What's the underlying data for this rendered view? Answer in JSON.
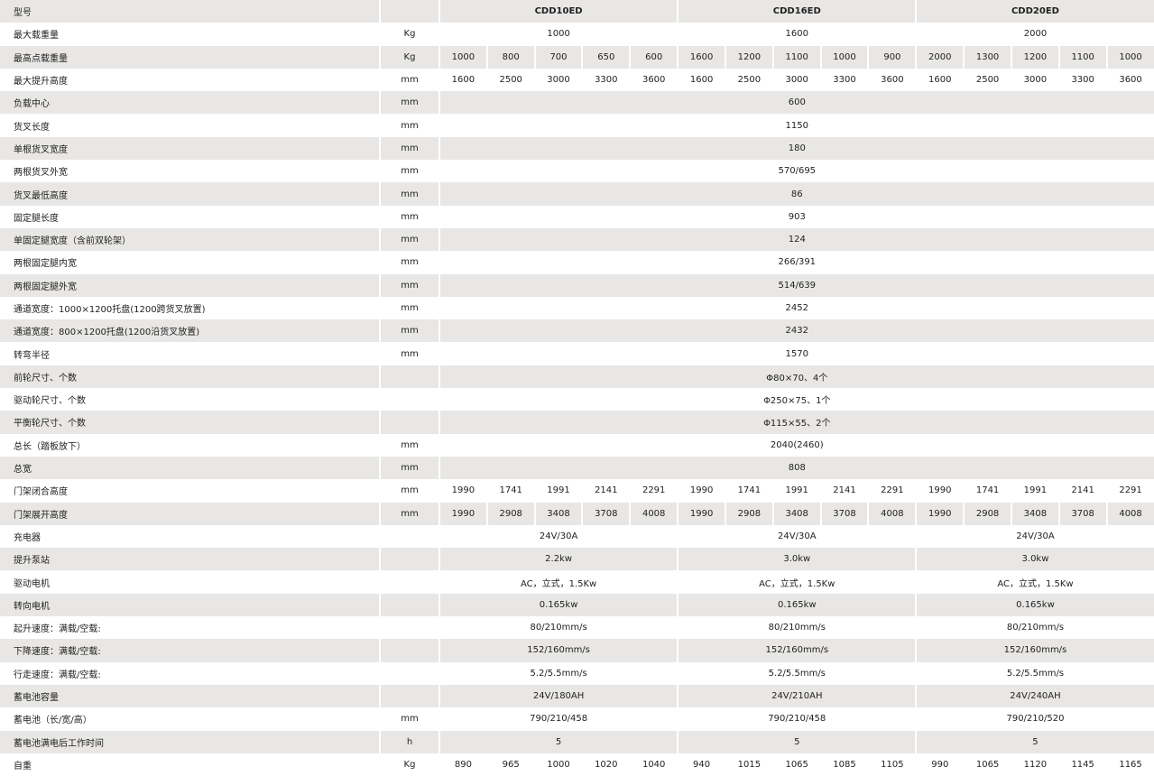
{
  "rows": [
    {
      "label": "型号",
      "unit": "",
      "span": "group",
      "values": [
        "CDD10ED",
        "CDD16ED",
        "CDD20ED"
      ]
    },
    {
      "label": "最大载重量",
      "unit": "Kg",
      "span": "group",
      "values": [
        "1000",
        "1600",
        "2000"
      ]
    },
    {
      "label": "最高点载重量",
      "unit": "Kg",
      "span": "each",
      "values": [
        "1000",
        "800",
        "700",
        "650",
        "600",
        "1600",
        "1200",
        "1100",
        "1000",
        "900",
        "2000",
        "1300",
        "1200",
        "1100",
        "1000"
      ]
    },
    {
      "label": "最大提升高度",
      "unit": "mm",
      "span": "each",
      "values": [
        "1600",
        "2500",
        "3000",
        "3300",
        "3600",
        "1600",
        "2500",
        "3000",
        "3300",
        "3600",
        "1600",
        "2500",
        "3000",
        "3300",
        "3600"
      ]
    },
    {
      "label": "负载中心",
      "unit": "mm",
      "span": "all",
      "values": [
        "600"
      ]
    },
    {
      "label": "货叉长度",
      "unit": "mm",
      "span": "all",
      "values": [
        "1150"
      ]
    },
    {
      "label": "单根货叉宽度",
      "unit": "mm",
      "span": "all",
      "values": [
        "180"
      ]
    },
    {
      "label": "两根货叉外宽",
      "unit": "mm",
      "span": "all",
      "values": [
        "570/695"
      ]
    },
    {
      "label": "货叉最低高度",
      "unit": "mm",
      "span": "all",
      "values": [
        "86"
      ]
    },
    {
      "label": "固定腿长度",
      "unit": "mm",
      "span": "all",
      "values": [
        "903"
      ]
    },
    {
      "label": "单固定腿宽度（含前双轮架）",
      "unit": "mm",
      "span": "all",
      "values": [
        "124"
      ]
    },
    {
      "label": "两根固定腿内宽",
      "unit": "mm",
      "span": "all",
      "values": [
        "266/391"
      ]
    },
    {
      "label": "两根固定腿外宽",
      "unit": "mm",
      "span": "all",
      "values": [
        "514/639"
      ]
    },
    {
      "label": "通道宽度：1000×1200托盘(1200跨货叉放置)",
      "unit": "mm",
      "span": "all",
      "values": [
        "2452"
      ]
    },
    {
      "label": "通道宽度：800×1200托盘(1200沿货叉放置)",
      "unit": "mm",
      "span": "all",
      "values": [
        "2432"
      ]
    },
    {
      "label": "转弯半径",
      "unit": "mm",
      "span": "all",
      "values": [
        "1570"
      ]
    },
    {
      "label": "前轮尺寸、个数",
      "unit": "",
      "span": "all",
      "values": [
        "Φ80×70、4个"
      ]
    },
    {
      "label": "驱动轮尺寸、个数",
      "unit": "",
      "span": "all",
      "values": [
        "Φ250×75、1个"
      ]
    },
    {
      "label": "平衡轮尺寸、个数",
      "unit": "",
      "span": "all",
      "values": [
        "Φ115×55、2个"
      ]
    },
    {
      "label": "总长（踏板放下）",
      "unit": "mm",
      "span": "all",
      "values": [
        "2040(2460)"
      ]
    },
    {
      "label": "总宽",
      "unit": "mm",
      "span": "all",
      "values": [
        "808"
      ]
    },
    {
      "label": "门架闭合高度",
      "unit": "mm",
      "span": "each",
      "values": [
        "1990",
        "1741",
        "1991",
        "2141",
        "2291",
        "1990",
        "1741",
        "1991",
        "2141",
        "2291",
        "1990",
        "1741",
        "1991",
        "2141",
        "2291"
      ]
    },
    {
      "label": "门架展开高度",
      "unit": "mm",
      "span": "each",
      "values": [
        "1990",
        "2908",
        "3408",
        "3708",
        "4008",
        "1990",
        "2908",
        "3408",
        "3708",
        "4008",
        "1990",
        "2908",
        "3408",
        "3708",
        "4008"
      ]
    },
    {
      "label": "充电器",
      "unit": "",
      "span": "group",
      "values": [
        "24V/30A",
        "24V/30A",
        "24V/30A"
      ]
    },
    {
      "label": "提升泵站",
      "unit": "",
      "span": "group",
      "values": [
        "2.2kw",
        "3.0kw",
        "3.0kw"
      ]
    },
    {
      "label": "驱动电机",
      "unit": "",
      "span": "group",
      "values": [
        "AC，立式，1.5Kw",
        "AC，立式，1.5Kw",
        "AC，立式，1.5Kw"
      ]
    },
    {
      "label": "转向电机",
      "unit": "",
      "span": "group",
      "values": [
        "0.165kw",
        "0.165kw",
        "0.165kw"
      ]
    },
    {
      "label": "起升速度：满载/空载:",
      "unit": "",
      "span": "group",
      "values": [
        "80/210mm/s",
        "80/210mm/s",
        "80/210mm/s"
      ]
    },
    {
      "label": "下降速度：满载/空载:",
      "unit": "",
      "span": "group",
      "values": [
        "152/160mm/s",
        "152/160mm/s",
        "152/160mm/s"
      ]
    },
    {
      "label": "行走速度：满载/空载:",
      "unit": "",
      "span": "group",
      "values": [
        "5.2/5.5mm/s",
        "5.2/5.5mm/s",
        "5.2/5.5mm/s"
      ]
    },
    {
      "label": "蓄电池容量",
      "unit": "",
      "span": "group",
      "values": [
        "24V/180AH",
        "24V/210AH",
        "24V/240AH"
      ]
    },
    {
      "label": "蓄电池（长/宽/高）",
      "unit": "mm",
      "span": "group",
      "values": [
        "790/210/458",
        "790/210/458",
        "790/210/520"
      ]
    },
    {
      "label": "蓄电池满电后工作时间",
      "unit": "h",
      "span": "group",
      "values": [
        "5",
        "5",
        "5"
      ]
    },
    {
      "label": "自重",
      "unit": "Kg",
      "span": "each",
      "values": [
        "890",
        "965",
        "1000",
        "1020",
        "1040",
        "940",
        "1015",
        "1065",
        "1085",
        "1105",
        "990",
        "1065",
        "1120",
        "1145",
        "1165"
      ]
    }
  ]
}
